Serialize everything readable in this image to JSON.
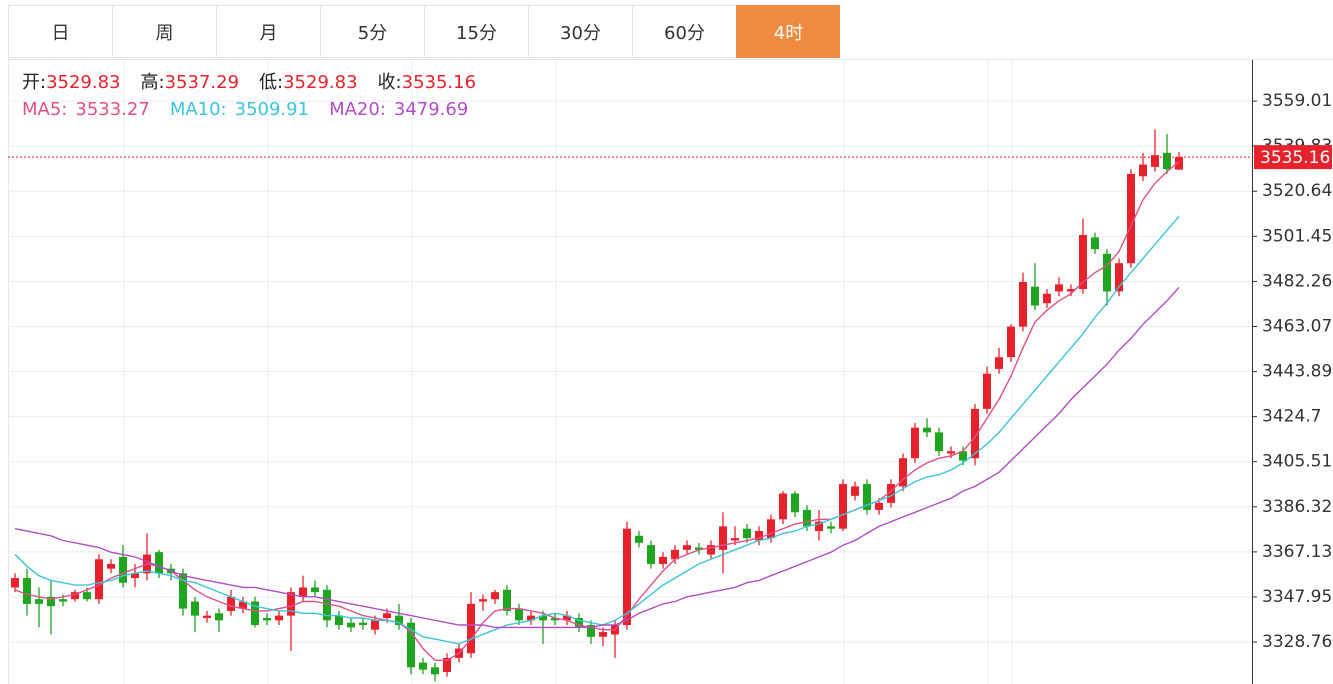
{
  "tabs": [
    "日",
    "周",
    "月",
    "5分",
    "15分",
    "30分",
    "60分",
    "4时"
  ],
  "active_tab": 7,
  "chart_data": {
    "type": "candlestick",
    "ohlc_labels": [
      "开:",
      "高:",
      "低:",
      "收:"
    ],
    "up_color": "#e8222c",
    "down_color": "#1fa51f",
    "ylim": [
      3310.9,
      3576.5
    ],
    "yticks": [
      3559.01,
      3539.83,
      3520.64,
      3501.45,
      3482.26,
      3463.07,
      3443.89,
      3424.7,
      3405.51,
      3386.32,
      3367.13,
      3347.95,
      3328.76
    ],
    "grid": true,
    "open": [
      3352,
      3356,
      3347,
      3348,
      3347,
      3347,
      3350,
      3347,
      3360,
      3365,
      3356,
      3358,
      3367,
      3360,
      3358,
      3346,
      3339,
      3341,
      3342,
      3343,
      3346,
      3339,
      3338,
      3340,
      3348,
      3352,
      3351,
      3340,
      3337,
      3337,
      3334,
      3339,
      3340,
      3337,
      3320,
      3318,
      3316,
      3322,
      3324,
      3346,
      3347,
      3351,
      3343,
      3338,
      3340,
      3339,
      3338,
      3339,
      3336,
      3331,
      3332,
      3336,
      3374,
      3370,
      3362,
      3364,
      3368,
      3369,
      3366,
      3368,
      3372,
      3377,
      3372,
      3373,
      3381,
      3392,
      3385,
      3376,
      3378,
      3377,
      3391,
      3396,
      3385,
      3388,
      3395,
      3407,
      3420,
      3418,
      3409,
      3410,
      3407,
      3428,
      3445,
      3450,
      3463,
      3480,
      3473,
      3478,
      3478,
      3479,
      3501,
      3494,
      3478,
      3490,
      3527,
      3531,
      3537,
      3529.83
    ],
    "high": [
      3358,
      3360,
      3352,
      3355,
      3349,
      3351,
      3352,
      3366,
      3364,
      3370,
      3362,
      3375,
      3368,
      3362,
      3360,
      3348,
      3342,
      3343,
      3351,
      3348,
      3348,
      3341,
      3342,
      3352,
      3357,
      3355,
      3353,
      3342,
      3339,
      3339,
      3340,
      3343,
      3345,
      3339,
      3322,
      3320,
      3324,
      3328,
      3350,
      3349,
      3351,
      3353,
      3345,
      3342,
      3342,
      3341,
      3342,
      3341,
      3338,
      3335,
      3338,
      3380,
      3376,
      3372,
      3367,
      3370,
      3372,
      3371,
      3372,
      3384,
      3378,
      3379,
      3378,
      3383,
      3393,
      3393,
      3387,
      3385,
      3380,
      3398,
      3397,
      3398,
      3390,
      3398,
      3409,
      3422,
      3424,
      3420,
      3412,
      3412,
      3430,
      3446,
      3454,
      3464,
      3486,
      3490,
      3479,
      3484,
      3481,
      3509,
      3503,
      3496,
      3492,
      3530,
      3537,
      3547,
      3545,
      3537.29
    ],
    "low": [
      3350,
      3340,
      3335,
      3332,
      3344,
      3346,
      3346,
      3345,
      3358,
      3352,
      3352,
      3355,
      3356,
      3355,
      3340,
      3333,
      3337,
      3333,
      3340,
      3341,
      3335,
      3336,
      3336,
      3325,
      3346,
      3348,
      3335,
      3334,
      3333,
      3334,
      3332,
      3337,
      3334,
      3315,
      3315,
      3312,
      3314,
      3320,
      3322,
      3342,
      3345,
      3340,
      3336,
      3336,
      3328,
      3336,
      3336,
      3333,
      3328,
      3327,
      3322,
      3334,
      3369,
      3360,
      3360,
      3362,
      3366,
      3366,
      3364,
      3358,
      3370,
      3371,
      3370,
      3371,
      3379,
      3382,
      3376,
      3372,
      3375,
      3376,
      3389,
      3383,
      3383,
      3386,
      3393,
      3405,
      3416,
      3408,
      3407,
      3404,
      3404,
      3426,
      3443,
      3448,
      3461,
      3470,
      3471,
      3476,
      3476,
      3477,
      3494,
      3472,
      3476,
      3488,
      3525,
      3529,
      3528,
      3529.83
    ],
    "close": [
      3356,
      3345,
      3345,
      3344,
      3346,
      3350,
      3347,
      3364,
      3362,
      3354,
      3358,
      3366,
      3358,
      3358,
      3343,
      3340,
      3340,
      3338,
      3348,
      3346,
      3336,
      3338,
      3340,
      3350,
      3352,
      3350,
      3338,
      3336,
      3335,
      3336,
      3338,
      3341,
      3336,
      3318,
      3317,
      3315,
      3322,
      3326,
      3345,
      3347,
      3350,
      3342,
      3338,
      3340,
      3338,
      3338,
      3340,
      3335,
      3331,
      3333,
      3336,
      3377,
      3371,
      3362,
      3365,
      3368,
      3370,
      3368,
      3370,
      3378,
      3373,
      3373,
      3376,
      3381,
      3392,
      3384,
      3378,
      3380,
      3377,
      3396,
      3395,
      3385,
      3388,
      3396,
      3407,
      3420,
      3418,
      3410,
      3410,
      3406,
      3428,
      3443,
      3450,
      3463,
      3482,
      3472,
      3477,
      3481,
      3479,
      3502,
      3496,
      3478,
      3490,
      3528,
      3532,
      3536,
      3530,
      3535.16
    ],
    "series": [
      {
        "name": "MA5:",
        "color": "#e0508a",
        "values": [
          3351,
          3349,
          3348,
          3347,
          3348,
          3349,
          3351,
          3353,
          3356,
          3358,
          3360,
          3362,
          3361,
          3359,
          3355,
          3351,
          3348,
          3346,
          3344,
          3343,
          3342,
          3342,
          3343,
          3344,
          3346,
          3346,
          3345,
          3344,
          3342,
          3340,
          3339,
          3338,
          3337,
          3333,
          3326,
          3321,
          3321,
          3324,
          3330,
          3337,
          3342,
          3343,
          3343,
          3342,
          3341,
          3339,
          3338,
          3336,
          3335,
          3334,
          3334,
          3340,
          3347,
          3353,
          3359,
          3364,
          3366,
          3368,
          3369,
          3370,
          3371,
          3372,
          3373,
          3375,
          3377,
          3379,
          3380,
          3381,
          3381,
          3383,
          3385,
          3387,
          3389,
          3393,
          3398,
          3402,
          3405,
          3407,
          3408,
          3410,
          3416,
          3424,
          3432,
          3442,
          3454,
          3465,
          3470,
          3474,
          3477,
          3482,
          3486,
          3489,
          3495,
          3506,
          3517,
          3524,
          3529,
          3533.27
        ]
      },
      {
        "name": "MA10:",
        "color": "#3cc4d8",
        "values": [
          3366,
          3361,
          3357,
          3355,
          3354,
          3353,
          3353,
          3354,
          3355,
          3357,
          3358,
          3359,
          3358,
          3357,
          3355,
          3354,
          3352,
          3350,
          3348,
          3346,
          3344,
          3343,
          3342,
          3342,
          3341,
          3341,
          3340,
          3340,
          3339,
          3339,
          3338,
          3338,
          3337,
          3334,
          3331,
          3330,
          3329,
          3328,
          3330,
          3332,
          3334,
          3336,
          3337,
          3338,
          3340,
          3341,
          3340,
          3338,
          3337,
          3336,
          3338,
          3341,
          3345,
          3349,
          3353,
          3356,
          3359,
          3362,
          3364,
          3366,
          3368,
          3370,
          3372,
          3373,
          3375,
          3376,
          3378,
          3379,
          3381,
          3383,
          3385,
          3387,
          3389,
          3391,
          3394,
          3397,
          3399,
          3400,
          3402,
          3405,
          3409,
          3413,
          3418,
          3424,
          3430,
          3436,
          3442,
          3448,
          3454,
          3460,
          3467,
          3473,
          3480,
          3486,
          3492,
          3498,
          3504,
          3509.91
        ]
      },
      {
        "name": "MA20:",
        "color": "#b14ec4",
        "values": [
          3377,
          3376,
          3375,
          3374,
          3372,
          3371,
          3370,
          3369,
          3367,
          3366,
          3365,
          3363,
          3361,
          3359,
          3357,
          3356,
          3355,
          3354,
          3353,
          3352,
          3352,
          3351,
          3350,
          3349,
          3348,
          3348,
          3347,
          3346,
          3345,
          3344,
          3343,
          3342,
          3341,
          3340,
          3339,
          3338,
          3337,
          3336,
          3336,
          3336,
          3335,
          3335,
          3335,
          3335,
          3335,
          3335,
          3335,
          3335,
          3335,
          3336,
          3336,
          3338,
          3341,
          3343,
          3345,
          3346,
          3348,
          3349,
          3350,
          3351,
          3352,
          3354,
          3355,
          3357,
          3359,
          3361,
          3363,
          3365,
          3367,
          3370,
          3372,
          3375,
          3378,
          3380,
          3382,
          3384,
          3386,
          3388,
          3390,
          3393,
          3395,
          3398,
          3401,
          3406,
          3411,
          3416,
          3421,
          3426,
          3432,
          3437,
          3442,
          3447,
          3453,
          3458,
          3464,
          3469,
          3474,
          3479.69
        ]
      }
    ]
  }
}
